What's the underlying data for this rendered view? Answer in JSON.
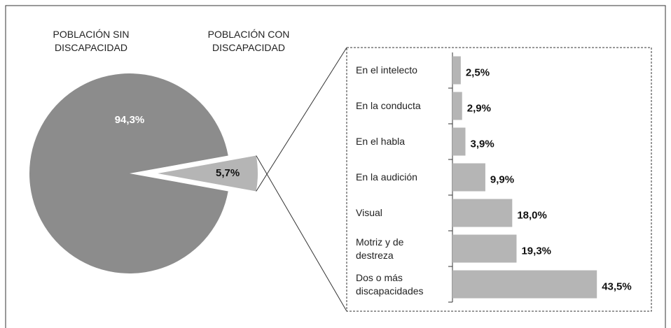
{
  "chart_data": [
    {
      "type": "pie",
      "categories": [
        "POBLACIÓN SIN DISCAPACIDAD",
        "POBLACIÓN CON DISCAPACIDAD"
      ],
      "values": [
        94.3,
        5.7
      ],
      "value_labels": [
        "94,3%",
        "5,7%"
      ],
      "colors": [
        "#8c8c8c",
        "#b5b5b5"
      ]
    },
    {
      "type": "bar",
      "orientation": "horizontal",
      "categories": [
        "En el intelecto",
        "En la conducta",
        "En el habla",
        "En la audición",
        "Visual",
        "Motriz y de destreza",
        "Dos o más discapacidades"
      ],
      "values": [
        2.5,
        2.9,
        3.9,
        9.9,
        18.0,
        19.3,
        43.5
      ],
      "value_labels": [
        "2,5%",
        "2,9%",
        "3,9%",
        "9,9%",
        "18,0%",
        "19,3%",
        "43,5%"
      ],
      "color": "#b5b5b5"
    }
  ]
}
